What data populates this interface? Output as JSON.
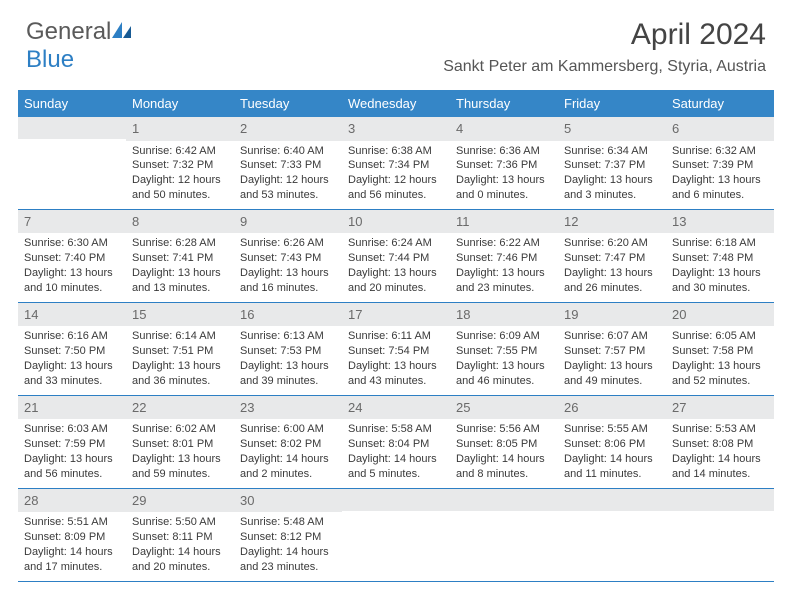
{
  "brand": {
    "name_part1": "General",
    "name_part2": "Blue"
  },
  "title": "April 2024",
  "location": "Sankt Peter am Kammersberg, Styria, Austria",
  "colors": {
    "header_band": "#3586c7",
    "daynum_band": "#e8e9ea",
    "rule": "#2d7fc4",
    "text": "#333333",
    "logo_gray": "#5a5a5a",
    "logo_blue": "#2d7fc4"
  },
  "weekdays": [
    "Sunday",
    "Monday",
    "Tuesday",
    "Wednesday",
    "Thursday",
    "Friday",
    "Saturday"
  ],
  "weeks": [
    [
      {
        "num": "",
        "sunrise": "",
        "sunset": "",
        "daylight1": "",
        "daylight2": ""
      },
      {
        "num": "1",
        "sunrise": "Sunrise: 6:42 AM",
        "sunset": "Sunset: 7:32 PM",
        "daylight1": "Daylight: 12 hours",
        "daylight2": "and 50 minutes."
      },
      {
        "num": "2",
        "sunrise": "Sunrise: 6:40 AM",
        "sunset": "Sunset: 7:33 PM",
        "daylight1": "Daylight: 12 hours",
        "daylight2": "and 53 minutes."
      },
      {
        "num": "3",
        "sunrise": "Sunrise: 6:38 AM",
        "sunset": "Sunset: 7:34 PM",
        "daylight1": "Daylight: 12 hours",
        "daylight2": "and 56 minutes."
      },
      {
        "num": "4",
        "sunrise": "Sunrise: 6:36 AM",
        "sunset": "Sunset: 7:36 PM",
        "daylight1": "Daylight: 13 hours",
        "daylight2": "and 0 minutes."
      },
      {
        "num": "5",
        "sunrise": "Sunrise: 6:34 AM",
        "sunset": "Sunset: 7:37 PM",
        "daylight1": "Daylight: 13 hours",
        "daylight2": "and 3 minutes."
      },
      {
        "num": "6",
        "sunrise": "Sunrise: 6:32 AM",
        "sunset": "Sunset: 7:39 PM",
        "daylight1": "Daylight: 13 hours",
        "daylight2": "and 6 minutes."
      }
    ],
    [
      {
        "num": "7",
        "sunrise": "Sunrise: 6:30 AM",
        "sunset": "Sunset: 7:40 PM",
        "daylight1": "Daylight: 13 hours",
        "daylight2": "and 10 minutes."
      },
      {
        "num": "8",
        "sunrise": "Sunrise: 6:28 AM",
        "sunset": "Sunset: 7:41 PM",
        "daylight1": "Daylight: 13 hours",
        "daylight2": "and 13 minutes."
      },
      {
        "num": "9",
        "sunrise": "Sunrise: 6:26 AM",
        "sunset": "Sunset: 7:43 PM",
        "daylight1": "Daylight: 13 hours",
        "daylight2": "and 16 minutes."
      },
      {
        "num": "10",
        "sunrise": "Sunrise: 6:24 AM",
        "sunset": "Sunset: 7:44 PM",
        "daylight1": "Daylight: 13 hours",
        "daylight2": "and 20 minutes."
      },
      {
        "num": "11",
        "sunrise": "Sunrise: 6:22 AM",
        "sunset": "Sunset: 7:46 PM",
        "daylight1": "Daylight: 13 hours",
        "daylight2": "and 23 minutes."
      },
      {
        "num": "12",
        "sunrise": "Sunrise: 6:20 AM",
        "sunset": "Sunset: 7:47 PM",
        "daylight1": "Daylight: 13 hours",
        "daylight2": "and 26 minutes."
      },
      {
        "num": "13",
        "sunrise": "Sunrise: 6:18 AM",
        "sunset": "Sunset: 7:48 PM",
        "daylight1": "Daylight: 13 hours",
        "daylight2": "and 30 minutes."
      }
    ],
    [
      {
        "num": "14",
        "sunrise": "Sunrise: 6:16 AM",
        "sunset": "Sunset: 7:50 PM",
        "daylight1": "Daylight: 13 hours",
        "daylight2": "and 33 minutes."
      },
      {
        "num": "15",
        "sunrise": "Sunrise: 6:14 AM",
        "sunset": "Sunset: 7:51 PM",
        "daylight1": "Daylight: 13 hours",
        "daylight2": "and 36 minutes."
      },
      {
        "num": "16",
        "sunrise": "Sunrise: 6:13 AM",
        "sunset": "Sunset: 7:53 PM",
        "daylight1": "Daylight: 13 hours",
        "daylight2": "and 39 minutes."
      },
      {
        "num": "17",
        "sunrise": "Sunrise: 6:11 AM",
        "sunset": "Sunset: 7:54 PM",
        "daylight1": "Daylight: 13 hours",
        "daylight2": "and 43 minutes."
      },
      {
        "num": "18",
        "sunrise": "Sunrise: 6:09 AM",
        "sunset": "Sunset: 7:55 PM",
        "daylight1": "Daylight: 13 hours",
        "daylight2": "and 46 minutes."
      },
      {
        "num": "19",
        "sunrise": "Sunrise: 6:07 AM",
        "sunset": "Sunset: 7:57 PM",
        "daylight1": "Daylight: 13 hours",
        "daylight2": "and 49 minutes."
      },
      {
        "num": "20",
        "sunrise": "Sunrise: 6:05 AM",
        "sunset": "Sunset: 7:58 PM",
        "daylight1": "Daylight: 13 hours",
        "daylight2": "and 52 minutes."
      }
    ],
    [
      {
        "num": "21",
        "sunrise": "Sunrise: 6:03 AM",
        "sunset": "Sunset: 7:59 PM",
        "daylight1": "Daylight: 13 hours",
        "daylight2": "and 56 minutes."
      },
      {
        "num": "22",
        "sunrise": "Sunrise: 6:02 AM",
        "sunset": "Sunset: 8:01 PM",
        "daylight1": "Daylight: 13 hours",
        "daylight2": "and 59 minutes."
      },
      {
        "num": "23",
        "sunrise": "Sunrise: 6:00 AM",
        "sunset": "Sunset: 8:02 PM",
        "daylight1": "Daylight: 14 hours",
        "daylight2": "and 2 minutes."
      },
      {
        "num": "24",
        "sunrise": "Sunrise: 5:58 AM",
        "sunset": "Sunset: 8:04 PM",
        "daylight1": "Daylight: 14 hours",
        "daylight2": "and 5 minutes."
      },
      {
        "num": "25",
        "sunrise": "Sunrise: 5:56 AM",
        "sunset": "Sunset: 8:05 PM",
        "daylight1": "Daylight: 14 hours",
        "daylight2": "and 8 minutes."
      },
      {
        "num": "26",
        "sunrise": "Sunrise: 5:55 AM",
        "sunset": "Sunset: 8:06 PM",
        "daylight1": "Daylight: 14 hours",
        "daylight2": "and 11 minutes."
      },
      {
        "num": "27",
        "sunrise": "Sunrise: 5:53 AM",
        "sunset": "Sunset: 8:08 PM",
        "daylight1": "Daylight: 14 hours",
        "daylight2": "and 14 minutes."
      }
    ],
    [
      {
        "num": "28",
        "sunrise": "Sunrise: 5:51 AM",
        "sunset": "Sunset: 8:09 PM",
        "daylight1": "Daylight: 14 hours",
        "daylight2": "and 17 minutes."
      },
      {
        "num": "29",
        "sunrise": "Sunrise: 5:50 AM",
        "sunset": "Sunset: 8:11 PM",
        "daylight1": "Daylight: 14 hours",
        "daylight2": "and 20 minutes."
      },
      {
        "num": "30",
        "sunrise": "Sunrise: 5:48 AM",
        "sunset": "Sunset: 8:12 PM",
        "daylight1": "Daylight: 14 hours",
        "daylight2": "and 23 minutes."
      },
      {
        "num": "",
        "sunrise": "",
        "sunset": "",
        "daylight1": "",
        "daylight2": ""
      },
      {
        "num": "",
        "sunrise": "",
        "sunset": "",
        "daylight1": "",
        "daylight2": ""
      },
      {
        "num": "",
        "sunrise": "",
        "sunset": "",
        "daylight1": "",
        "daylight2": ""
      },
      {
        "num": "",
        "sunrise": "",
        "sunset": "",
        "daylight1": "",
        "daylight2": ""
      }
    ]
  ]
}
